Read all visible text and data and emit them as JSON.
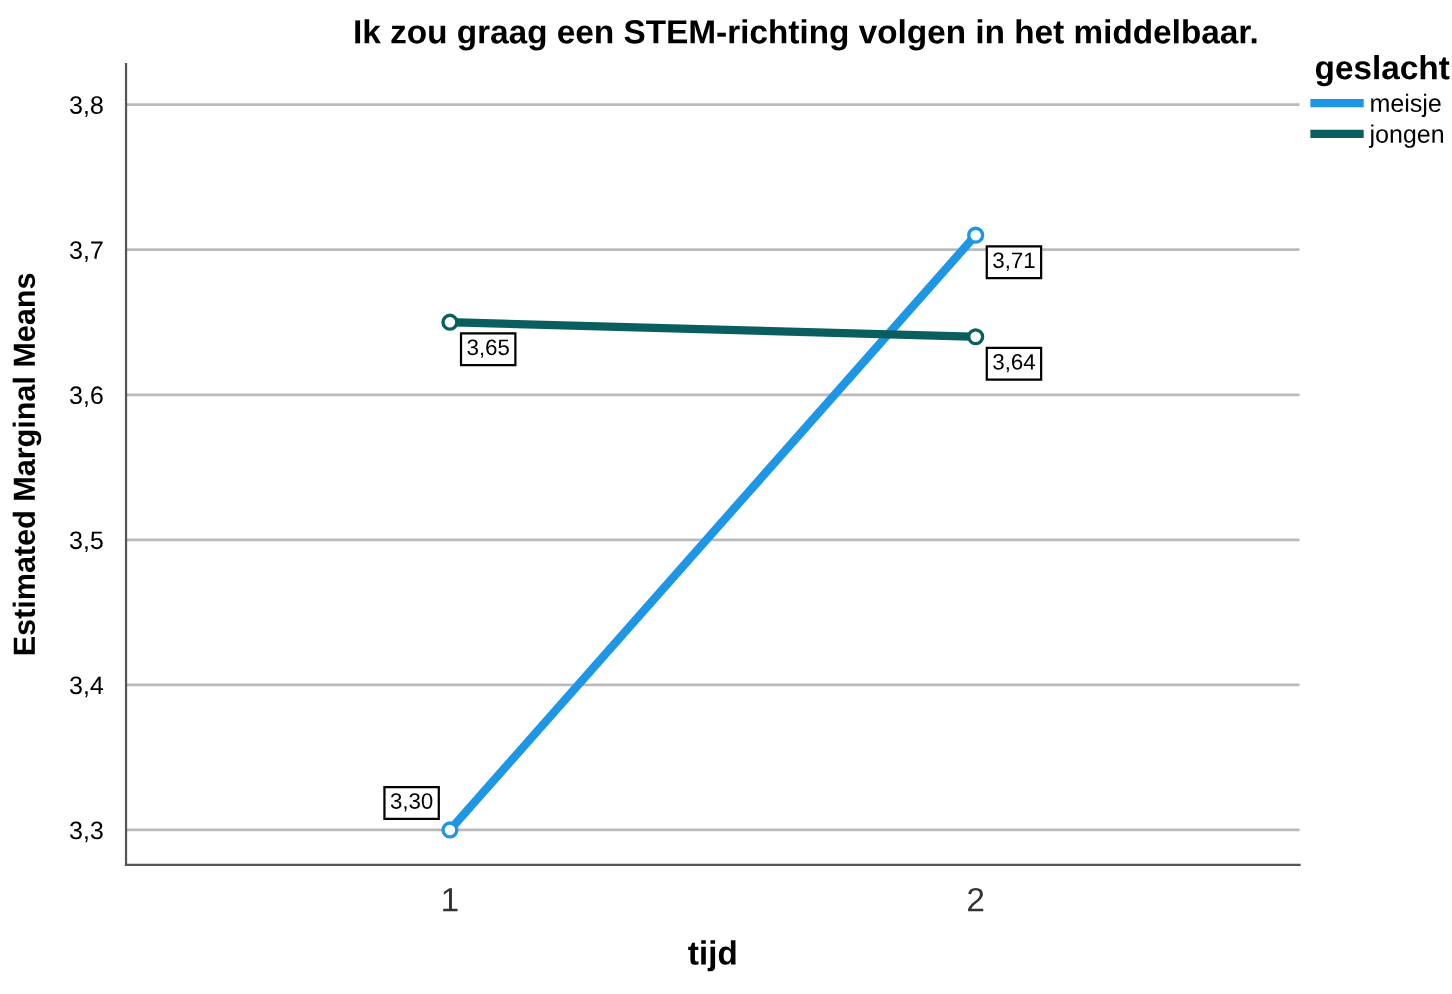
{
  "chart_data": {
    "type": "line",
    "title": "Ik zou graag een STEM-richting volgen in het middelbaar.",
    "xlabel": "tijd",
    "ylabel": "Estimated Marginal Means",
    "legend_title": "geslacht",
    "categories": [
      "1",
      "2"
    ],
    "series": [
      {
        "name": "meisje",
        "color": "#1e96e6",
        "values": [
          3.3,
          3.71
        ],
        "value_labels": [
          "3,30",
          "3,71"
        ]
      },
      {
        "name": "jongen",
        "color": "#0a5e5e",
        "values": [
          3.65,
          3.64
        ],
        "value_labels": [
          "3,65",
          "3,64"
        ]
      }
    ],
    "ylim": [
      3.276,
      3.828
    ],
    "yticks": [
      {
        "value": 3.3,
        "label": "3,3"
      },
      {
        "value": 3.4,
        "label": "3,4"
      },
      {
        "value": 3.5,
        "label": "3,5"
      },
      {
        "value": 3.6,
        "label": "3,6"
      },
      {
        "value": 3.7,
        "label": "3,7"
      },
      {
        "value": 3.8,
        "label": "3,8"
      }
    ],
    "grid": "y",
    "legend": "top right",
    "marker": "circle",
    "line_style": "solid"
  }
}
